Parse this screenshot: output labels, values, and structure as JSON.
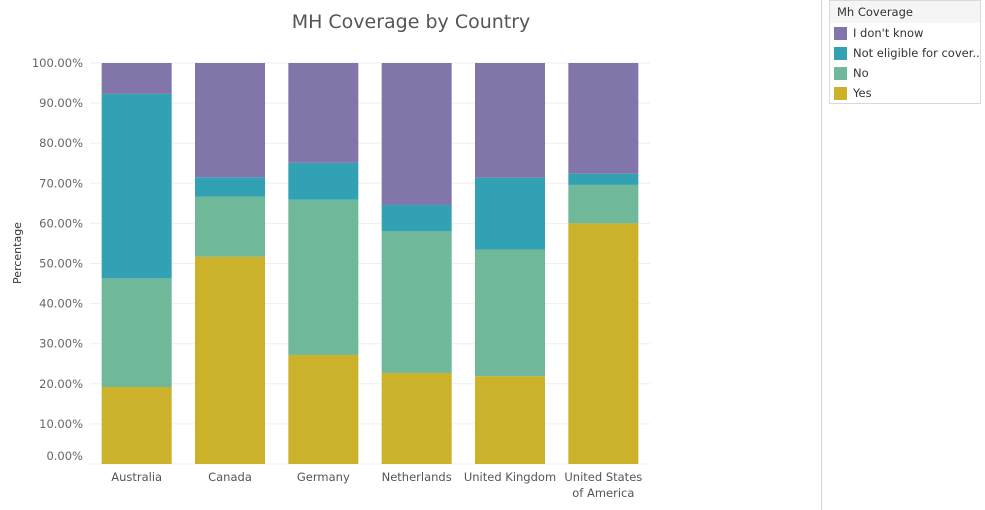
{
  "chart_data": {
    "type": "bar",
    "stacked": true,
    "title": "MH Coverage by Country",
    "ylabel": "Percentage",
    "xlabel": "",
    "ylim": [
      0,
      100
    ],
    "y_ticks": [
      "0.00%",
      "10.00%",
      "20.00%",
      "30.00%",
      "40.00%",
      "50.00%",
      "60.00%",
      "70.00%",
      "80.00%",
      "90.00%",
      "100.00%"
    ],
    "categories": [
      [
        "Australia"
      ],
      [
        "Canada"
      ],
      [
        "Germany"
      ],
      [
        "Netherlands"
      ],
      [
        "United Kingdom"
      ],
      [
        "United States",
        "of America"
      ]
    ],
    "grid": true,
    "legend_position": "top-right",
    "series": [
      {
        "name": "Yes",
        "color": "#ccb22b",
        "values": [
          19.2,
          51.7,
          27.2,
          22.7,
          21.9,
          60.0
        ]
      },
      {
        "name": "No",
        "color": "#6fb899",
        "values": [
          27.1,
          15.0,
          38.7,
          35.4,
          31.6,
          9.6
        ]
      },
      {
        "name": "Not eligible for cover..",
        "color": "#31a1b3",
        "values": [
          46.0,
          4.8,
          9.2,
          6.5,
          17.9,
          2.8
        ]
      },
      {
        "name": "I don't know",
        "color": "#8175aa",
        "values": [
          7.7,
          28.5,
          24.9,
          35.4,
          28.6,
          27.6
        ]
      }
    ]
  },
  "legend": {
    "title": "Mh Coverage",
    "items": [
      {
        "label": "I don't know",
        "color": "#8175aa"
      },
      {
        "label": "Not eligible for cover..",
        "color": "#31a1b3"
      },
      {
        "label": "No",
        "color": "#6fb899"
      },
      {
        "label": "Yes",
        "color": "#ccb22b"
      }
    ]
  }
}
